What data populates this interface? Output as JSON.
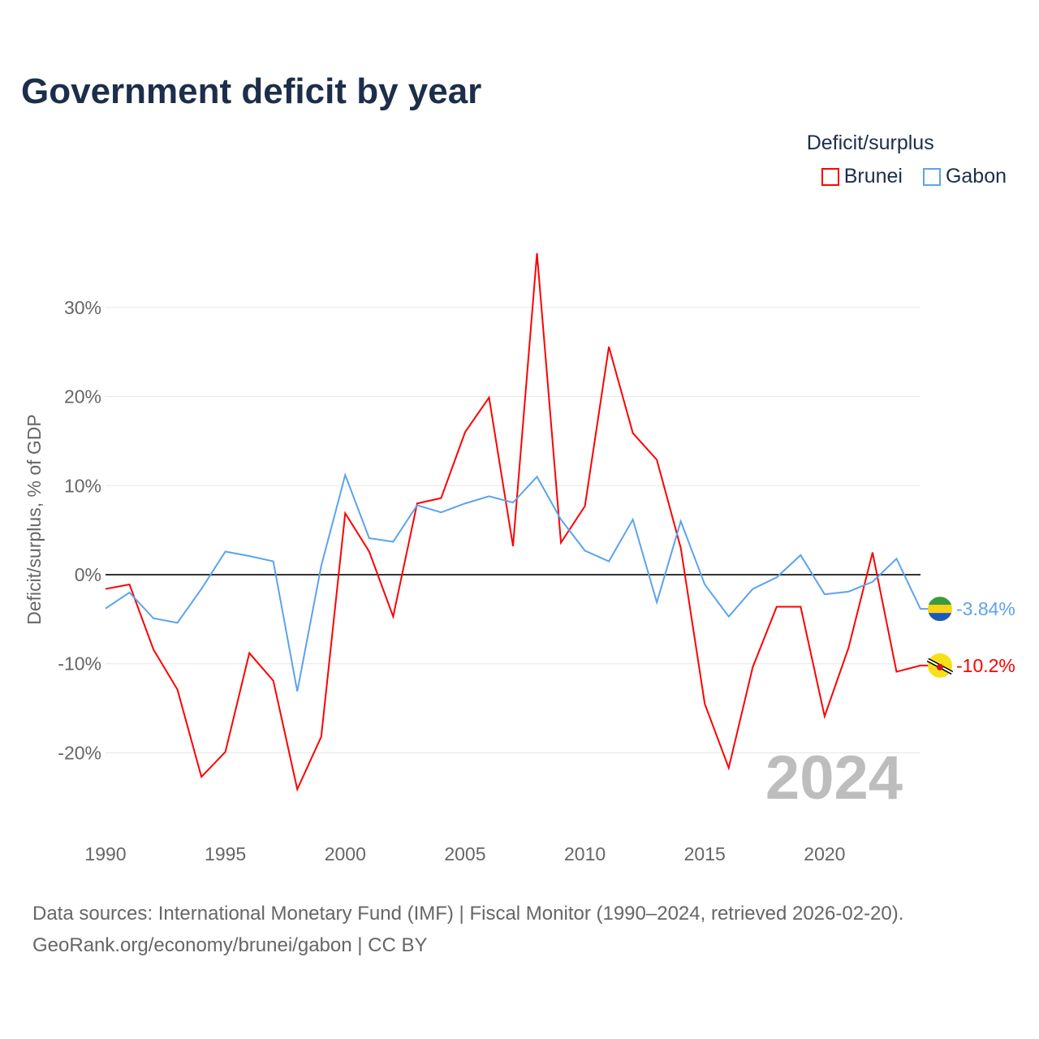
{
  "title": "Government deficit by year",
  "legend": {
    "title": "Deficit/surplus",
    "items": [
      {
        "label": "Brunei",
        "color": "#ff0000"
      },
      {
        "label": "Gabon",
        "color": "#5ba3ef"
      }
    ]
  },
  "year_watermark": "2024",
  "source": {
    "line1": "Data sources: International Monetary Fund (IMF) | Fiscal Monitor (1990–2024, retrieved 2026-02-20).",
    "line2": "GeoRank.org/economy/brunei/gabon | CC BY"
  },
  "chart_data": {
    "type": "line",
    "title": "Government deficit by year",
    "xlabel": "",
    "ylabel": "Deficit/surplus, % of GDP",
    "xlim": [
      1990,
      2024
    ],
    "ylim": [
      -28,
      38
    ],
    "xticks": [
      {
        "v": 1990,
        "label": "1990"
      },
      {
        "v": 1995,
        "label": "1995"
      },
      {
        "v": 2000,
        "label": "2000"
      },
      {
        "v": 2005,
        "label": "2005"
      },
      {
        "v": 2010,
        "label": "2010"
      },
      {
        "v": 2015,
        "label": "2015"
      },
      {
        "v": 2020,
        "label": "2020"
      }
    ],
    "yticks": [
      {
        "v": -20,
        "label": "-20%"
      },
      {
        "v": -10,
        "label": "-10%"
      },
      {
        "v": 0,
        "label": "0%"
      },
      {
        "v": 10,
        "label": "10%"
      },
      {
        "v": 20,
        "label": "20%"
      },
      {
        "v": 30,
        "label": "30%"
      }
    ],
    "x": [
      1990,
      1991,
      1992,
      1993,
      1994,
      1995,
      1996,
      1997,
      1998,
      1999,
      2000,
      2001,
      2002,
      2003,
      2004,
      2005,
      2006,
      2007,
      2008,
      2009,
      2010,
      2011,
      2012,
      2013,
      2014,
      2015,
      2016,
      2017,
      2018,
      2019,
      2020,
      2021,
      2022,
      2023,
      2024
    ],
    "series": [
      {
        "name": "Brunei",
        "color": "#ff0000",
        "end_label": "-10.2%",
        "values": [
          -1.6,
          -1.1,
          -8.4,
          -12.9,
          -22.7,
          -19.9,
          -8.8,
          -11.9,
          -24.1,
          -18.2,
          6.9,
          2.6,
          -4.7,
          8.0,
          8.6,
          16.0,
          19.9,
          3.2,
          36.1,
          3.6,
          7.7,
          25.6,
          15.9,
          12.9,
          3.0,
          -14.5,
          -21.7,
          -10.4,
          -3.6,
          -3.6,
          -15.9,
          -8.2,
          2.5,
          -10.9,
          -10.2
        ]
      },
      {
        "name": "Gabon",
        "color": "#5ba3ef",
        "end_label": "-3.84%",
        "values": [
          -3.8,
          -2.0,
          -4.9,
          -5.4,
          -1.6,
          2.6,
          2.1,
          1.5,
          -13.1,
          1.0,
          11.2,
          4.1,
          3.7,
          7.8,
          7.0,
          8.0,
          8.8,
          8.1,
          11.0,
          6.2,
          2.7,
          1.5,
          6.2,
          -3.1,
          6.0,
          -1.1,
          -4.7,
          -1.6,
          -0.3,
          2.2,
          -2.2,
          -1.9,
          -0.8,
          1.8,
          -3.84
        ]
      }
    ]
  }
}
